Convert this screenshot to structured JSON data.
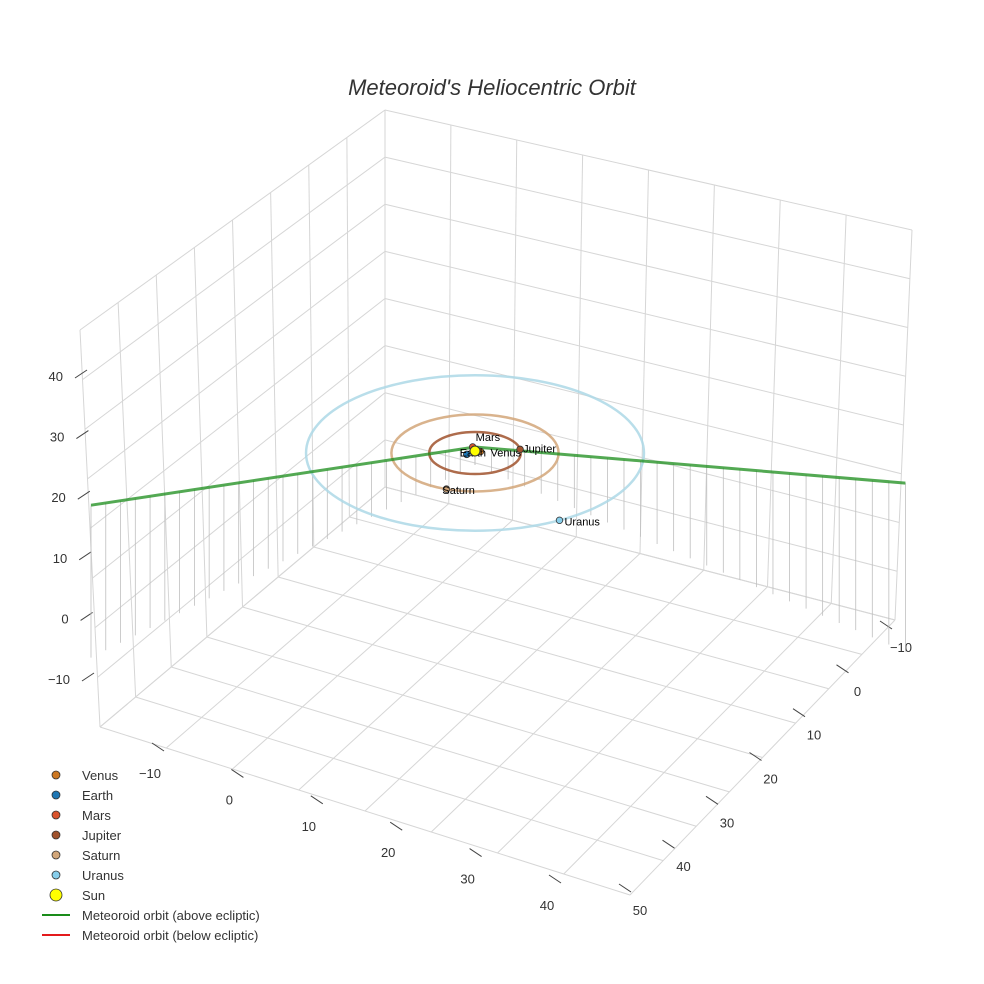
{
  "chart_data": {
    "type": "scatter3d",
    "title": "Meteoroid's Heliocentric Orbit",
    "axes": {
      "x": {
        "ticks": [
          "−10",
          "0",
          "10",
          "20",
          "30",
          "40"
        ]
      },
      "y": {
        "ticks": [
          "−10",
          "0",
          "10",
          "20",
          "30",
          "40",
          "50"
        ]
      },
      "z": {
        "ticks": [
          "−10",
          "0",
          "10",
          "20",
          "30",
          "40"
        ]
      }
    },
    "sun": {
      "name": "Sun",
      "x": 0,
      "y": 0,
      "z": 0,
      "color": "#ffff00"
    },
    "planets": [
      {
        "name": "Venus",
        "radius": 0.72,
        "angle": 30,
        "color": "#cc7722"
      },
      {
        "name": "Earth",
        "radius": 1.0,
        "angle": 200,
        "color": "#1f77b4"
      },
      {
        "name": "Mars",
        "radius": 1.52,
        "angle": 100,
        "color": "#d9532c"
      },
      {
        "name": "Jupiter",
        "radius": 5.2,
        "angle": 10,
        "color": "#a0522d"
      },
      {
        "name": "Saturn",
        "radius": 9.5,
        "angle": 250,
        "color": "#d2a679"
      },
      {
        "name": "Uranus",
        "radius": 19.2,
        "angle": 300,
        "color": "#87ceeb"
      }
    ],
    "orbit_colors": {
      "Jupiter": "#a0522d",
      "Saturn": "#d2a679",
      "Uranus": "#add8e6"
    },
    "meteoroid": {
      "above": {
        "name": "Meteoroid orbit (above ecliptic)",
        "color": "#1a8c1a"
      },
      "below": {
        "name": "Meteoroid orbit (below ecliptic)",
        "color": "#e31a1c"
      },
      "points": [
        [
          -12,
          47,
          0
        ],
        [
          0,
          0,
          0
        ],
        [
          48,
          -12,
          0
        ]
      ]
    },
    "legend": [
      {
        "name": "Venus",
        "kind": "marker",
        "color": "#cc7722"
      },
      {
        "name": "Earth",
        "kind": "marker",
        "color": "#1f77b4"
      },
      {
        "name": "Mars",
        "kind": "marker",
        "color": "#d9532c"
      },
      {
        "name": "Jupiter",
        "kind": "marker",
        "color": "#a0522d"
      },
      {
        "name": "Saturn",
        "kind": "marker",
        "color": "#d2a679"
      },
      {
        "name": "Uranus",
        "kind": "marker",
        "color": "#87ceeb"
      },
      {
        "name": "Sun",
        "kind": "bigmarker",
        "color": "#ffff00"
      },
      {
        "name": "Meteoroid orbit (above ecliptic)",
        "kind": "line",
        "color": "#1a8c1a"
      },
      {
        "name": "Meteoroid orbit (below ecliptic)",
        "kind": "line",
        "color": "#e31a1c"
      }
    ]
  }
}
